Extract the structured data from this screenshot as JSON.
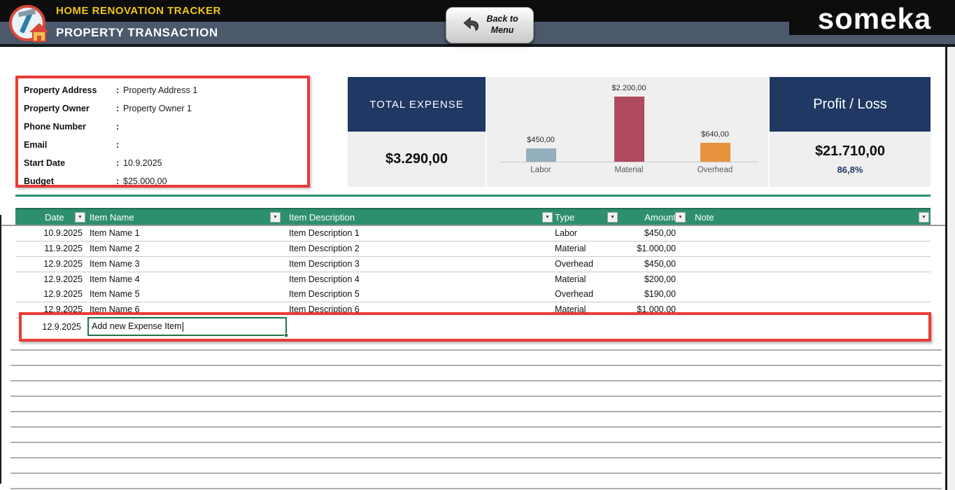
{
  "header": {
    "app_title": "HOME RENOVATION TRACKER",
    "page_title": "PROPERTY TRANSACTION",
    "back_button_line1": "Back to",
    "back_button_line2": "Menu",
    "brand_part1": "s",
    "brand_o": "o",
    "brand_part2": "meka"
  },
  "property_info": {
    "fields": [
      {
        "label": "Property Address",
        "value": "Property Address 1"
      },
      {
        "label": "Property Owner",
        "value": "Property Owner 1"
      },
      {
        "label": "Phone Number",
        "value": ""
      },
      {
        "label": "Email",
        "value": ""
      },
      {
        "label": "Start Date",
        "value": "10.9.2025"
      },
      {
        "label": "Budget",
        "value": "$25.000,00"
      }
    ]
  },
  "summary": {
    "total_expense_title": "TOTAL EXPENSE",
    "total_expense_value": "$3.290,00",
    "profit_loss_title": "Profit / Loss",
    "profit_loss_value": "$21.710,00",
    "profit_loss_percent": "86,8%"
  },
  "chart_data": {
    "type": "bar",
    "title": "",
    "categories": [
      "Labor",
      "Material",
      "Overhead"
    ],
    "values": [
      450,
      2200,
      640
    ],
    "value_labels": [
      "$450,00",
      "$2.200,00",
      "$640,00"
    ],
    "colors": [
      "#94AFBE",
      "#B04A5E",
      "#E8943F"
    ],
    "xlabel": "",
    "ylabel": "",
    "ylim": [
      0,
      2200
    ],
    "grid": false,
    "legend_position": "none"
  },
  "table": {
    "columns": [
      "Date",
      "Item Name",
      "Item Description",
      "Type",
      "Amount",
      "Note"
    ],
    "rows": [
      {
        "date": "10.9.2025",
        "name": "Item Name 1",
        "description": "Item Description 1",
        "type": "Labor",
        "amount": "$450,00",
        "note": ""
      },
      {
        "date": "11.9.2025",
        "name": "Item Name 2",
        "description": "Item Description 2",
        "type": "Material",
        "amount": "$1.000,00",
        "note": ""
      },
      {
        "date": "12.9.2025",
        "name": "Item Name 3",
        "description": "Item Description 3",
        "type": "Overhead",
        "amount": "$450,00",
        "note": ""
      },
      {
        "date": "12.9.2025",
        "name": "Item Name 4",
        "description": "Item Description 4",
        "type": "Material",
        "amount": "$200,00",
        "note": ""
      },
      {
        "date": "12.9.2025",
        "name": "Item Name 5",
        "description": "Item Description 5",
        "type": "Overhead",
        "amount": "$190,00",
        "note": ""
      },
      {
        "date": "12.9.2025",
        "name": "Item Name 6",
        "description": "Item Description 6",
        "type": "Material",
        "amount": "$1.000,00",
        "note": ""
      }
    ],
    "new_row": {
      "date": "12.9.2025",
      "editing_text": "Add new Expense Item"
    }
  },
  "colors": {
    "accent_green": "#2E8F70",
    "navy": "#1F3864",
    "annotation_red": "#EA3B36",
    "edit_border_green": "#217346",
    "title_yellow": "#F0C419"
  }
}
